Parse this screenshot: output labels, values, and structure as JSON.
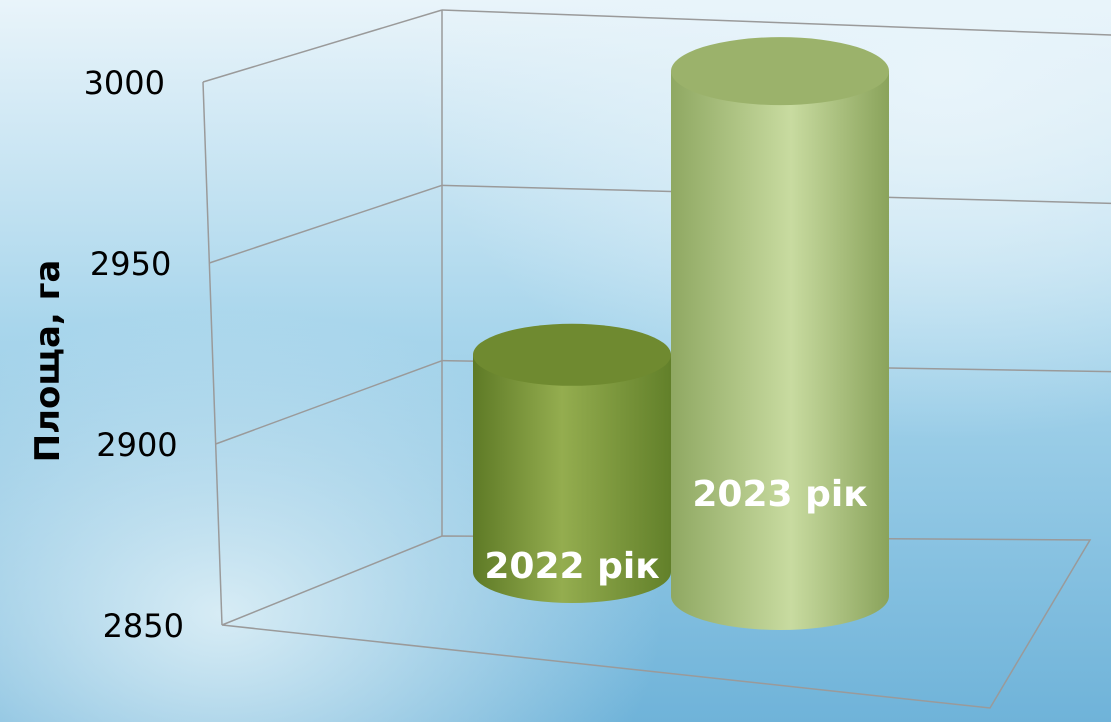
{
  "chart_data": {
    "type": "bar",
    "style": "3d-cylinder",
    "categories": [
      "2022 рік",
      "2023 рік"
    ],
    "values": [
      2910,
      2995
    ],
    "series": [
      {
        "values": [
          2910,
          2995
        ]
      }
    ],
    "ylabel": "Площа, га",
    "xlabel": "",
    "title": "",
    "ylim": [
      2850,
      3000
    ],
    "yticks": [
      "2850",
      "2900",
      "2950",
      "3000"
    ],
    "grid": true,
    "legend": "none",
    "colors": {
      "bar_2022": "#7e9a3c",
      "bar_2023": "#a9bf7c",
      "background_top": "#e9f4fa",
      "background_bottom": "#6fb3d9",
      "gridline": "#9a9a9a"
    }
  }
}
